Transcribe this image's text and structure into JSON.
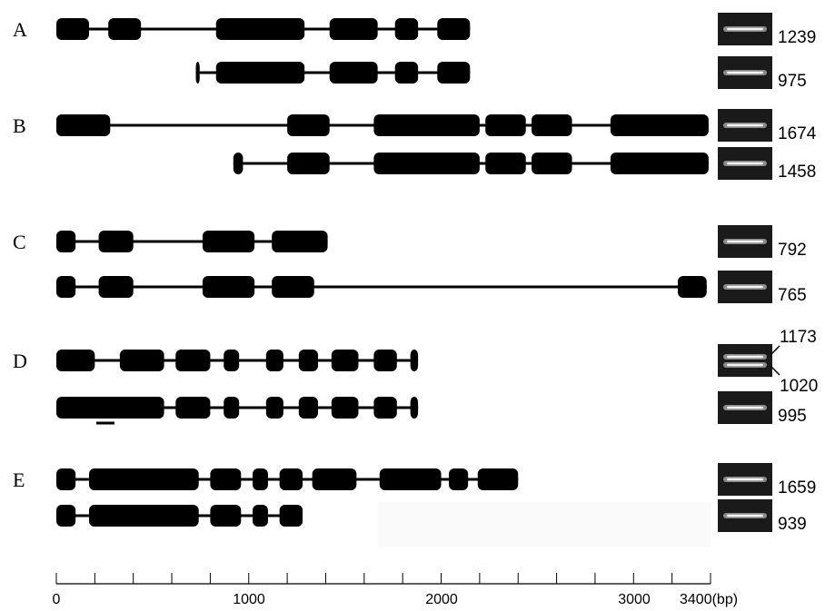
{
  "axis": {
    "min": 0,
    "max": 3400,
    "unit": "(bp)",
    "tick_labels": [
      "0",
      "1000",
      "2000",
      "3000",
      "3400(bp)"
    ]
  },
  "groups": [
    {
      "label": "A",
      "transcripts": [
        {
          "size": "1239",
          "exons": [
            [
              0,
              170
            ],
            [
              270,
              440
            ],
            [
              830,
              1290
            ],
            [
              1420,
              1670
            ],
            [
              1760,
              1880
            ],
            [
              1980,
              2150
            ]
          ]
        },
        {
          "size": "975",
          "exons": [
            [
              725,
              745
            ],
            [
              830,
              1290
            ],
            [
              1420,
              1670
            ],
            [
              1760,
              1880
            ],
            [
              1980,
              2150
            ]
          ]
        }
      ]
    },
    {
      "label": "B",
      "transcripts": [
        {
          "size": "1674",
          "exons": [
            [
              0,
              280
            ],
            [
              1200,
              1420
            ],
            [
              1650,
              2200
            ],
            [
              2230,
              2440
            ],
            [
              2470,
              2680
            ],
            [
              2880,
              3390
            ]
          ]
        },
        {
          "size": "1458",
          "exons": [
            [
              920,
              970
            ],
            [
              1200,
              1420
            ],
            [
              1650,
              2200
            ],
            [
              2230,
              2440
            ],
            [
              2470,
              2680
            ],
            [
              2880,
              3390
            ]
          ]
        }
      ]
    },
    {
      "label": "C",
      "transcripts": [
        {
          "size": "792",
          "exons": [
            [
              0,
              100
            ],
            [
              220,
              400
            ],
            [
              760,
              1030
            ],
            [
              1120,
              1410
            ]
          ]
        },
        {
          "size": "765",
          "exons": [
            [
              0,
              100
            ],
            [
              220,
              400
            ],
            [
              760,
              1030
            ],
            [
              1120,
              1340
            ],
            [
              3230,
              3380
            ]
          ]
        }
      ]
    },
    {
      "label": "D",
      "transcripts": [
        {
          "size": "",
          "exons": [
            [
              0,
              200
            ],
            [
              330,
              560
            ],
            [
              620,
              800
            ],
            [
              870,
              950
            ],
            [
              1090,
              1180
            ],
            [
              1260,
              1360
            ],
            [
              1430,
              1570
            ],
            [
              1650,
              1770
            ],
            [
              1840,
              1880
            ]
          ]
        },
        {
          "size": "995",
          "exons": [
            [
              0,
              560
            ],
            [
              620,
              800
            ],
            [
              870,
              950
            ],
            [
              1090,
              1180
            ],
            [
              1260,
              1360
            ],
            [
              1430,
              1570
            ],
            [
              1650,
              1770
            ],
            [
              1840,
              1880
            ]
          ]
        }
      ]
    },
    {
      "label": "E",
      "transcripts": [
        {
          "size": "1659",
          "exons": [
            [
              0,
              100
            ],
            [
              170,
              740
            ],
            [
              800,
              960
            ],
            [
              1020,
              1100
            ],
            [
              1160,
              1280
            ],
            [
              1330,
              1560
            ],
            [
              1680,
              2000
            ],
            [
              2040,
              2140
            ],
            [
              2190,
              2400
            ]
          ]
        },
        {
          "size": "939",
          "exons": [
            [
              0,
              100
            ],
            [
              170,
              740
            ],
            [
              800,
              960
            ],
            [
              1020,
              1100
            ],
            [
              1160,
              1280
            ]
          ]
        }
      ]
    }
  ],
  "d_double_band": {
    "upper": "1173",
    "lower": "1020"
  }
}
